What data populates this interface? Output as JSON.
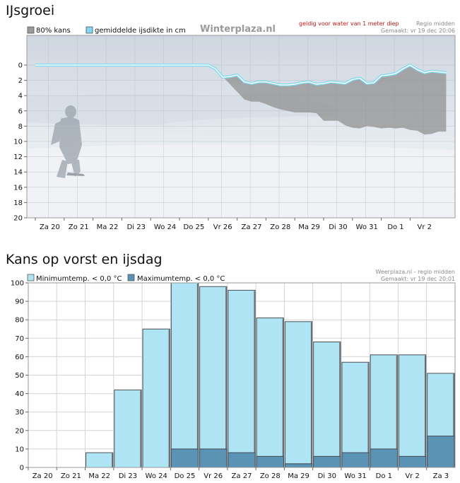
{
  "colors": {
    "ice_line": "#7fd7f2",
    "band_80": "#9a9a9a",
    "min_bar": "#aee4f3",
    "max_bar": "#5b93b5",
    "grid": "#c8c8c8"
  },
  "chart_data": [
    {
      "type": "area",
      "title": "IJsgroei",
      "watermark": "Winterplaza.nl",
      "note": "geldig voor water van 1 meter diep",
      "region": "Regio midden",
      "made": "Gemaakt: vr 19 dec 20:06",
      "legend": [
        "80% kans",
        "gemiddelde ijsdikte in cm"
      ],
      "categories": [
        "Za 20",
        "Zo 21",
        "Ma 22",
        "Di 23",
        "Wo 24",
        "Do 25",
        "Vr 26",
        "Za 27",
        "Zo 28",
        "Ma 29",
        "Di 30",
        "Wo 31",
        "Do 1",
        "Vr 2"
      ],
      "y_ticks": [
        "0",
        "2",
        "4",
        "6",
        "8",
        "10",
        "12",
        "14",
        "16",
        "18",
        "20"
      ],
      "ylim": [
        0,
        20
      ],
      "y_inverted": true,
      "x": [
        0,
        0.5,
        1,
        1.5,
        2,
        2.5,
        3,
        3.5,
        4,
        4.5,
        5,
        5.5,
        6,
        6.25,
        6.5,
        6.75,
        7,
        7.25,
        7.5,
        7.75,
        8,
        8.25,
        8.5,
        8.75,
        9,
        9.25,
        9.5,
        9.75,
        10,
        10.25,
        10.5,
        10.75,
        11,
        11.25,
        11.5,
        11.75,
        12,
        12.25,
        12.5,
        12.75,
        13,
        13.25,
        13.5,
        13.75,
        14,
        14.25
      ],
      "series": [
        {
          "name": "gemiddelde ijsdikte in cm",
          "values": [
            0,
            0,
            0,
            0,
            0,
            0,
            0,
            0,
            0,
            0,
            0,
            0,
            0,
            0.5,
            1.6,
            1.5,
            1.3,
            2.2,
            2.4,
            2.2,
            2.2,
            2.4,
            2.6,
            2.6,
            2.5,
            2.3,
            2.2,
            2.5,
            2.4,
            2.2,
            2.3,
            2.4,
            1.9,
            1.7,
            2.4,
            2.3,
            1.4,
            1.3,
            1.1,
            0.5,
            0,
            0.6,
            1,
            0.8,
            0.9,
            1.0
          ]
        },
        {
          "name": "80% kans",
          "values": [
            0,
            0,
            0,
            0,
            0,
            0,
            0,
            0,
            0,
            0,
            0,
            0,
            0.1,
            0.6,
            1.5,
            2.5,
            3.5,
            4.5,
            4.8,
            4.8,
            5.1,
            5.5,
            5.8,
            6.0,
            6.2,
            6.2,
            6.2,
            6.3,
            7.3,
            7.3,
            7.3,
            7.9,
            8.2,
            8.3,
            8.0,
            8.1,
            8.3,
            8.2,
            8.3,
            8.2,
            8.5,
            8.6,
            9.1,
            9.0,
            8.7,
            8.7
          ]
        }
      ]
    },
    {
      "type": "bar",
      "title": "Kans op vorst en ijsdag",
      "source": "Weerplaza.nl - regio midden",
      "made": "Gemaakt: vr 19 dec 20:01",
      "legend": [
        "Minimumtemp. < 0,0 °C",
        "Maximumtemp. < 0,0 °C"
      ],
      "categories": [
        "Za 20",
        "Zo 21",
        "Ma 22",
        "Di 23",
        "Wo 24",
        "Do 25",
        "Vr 26",
        "Za 27",
        "Zo 28",
        "Ma 29",
        "Di 30",
        "Wo 31",
        "Do 1",
        "Vr 2",
        "Za 3"
      ],
      "y_ticks": [
        "0",
        "10",
        "20",
        "30",
        "40",
        "50",
        "60",
        "70",
        "80",
        "90",
        "100"
      ],
      "ylim": [
        0,
        100
      ],
      "series": [
        {
          "name": "Minimumtemp. < 0,0 °C",
          "values": [
            0,
            0,
            8,
            42,
            75,
            100,
            98,
            96,
            81,
            79,
            68,
            57,
            61,
            61,
            51
          ]
        },
        {
          "name": "Maximumtemp. < 0,0 °C",
          "values": [
            0,
            0,
            0,
            0,
            0,
            10,
            10,
            8,
            6,
            2,
            6,
            8,
            10,
            6,
            17
          ]
        }
      ]
    }
  ]
}
